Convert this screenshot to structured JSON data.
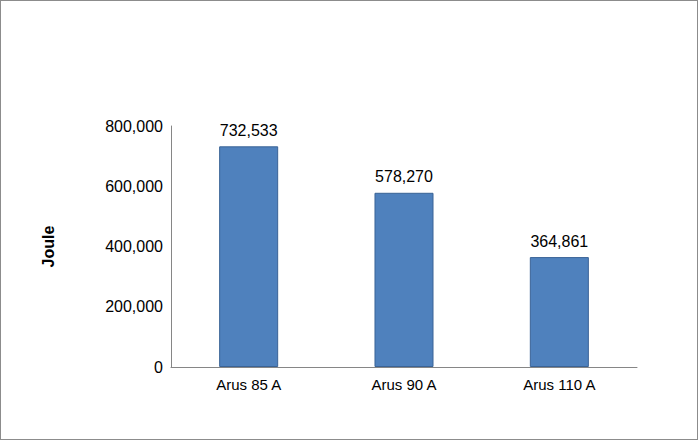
{
  "chart_data": {
    "type": "bar",
    "y_label": "Joule",
    "categories": [
      "Arus 85 A",
      "Arus 90 A",
      "Arus 110 A"
    ],
    "values": [
      732533,
      578270,
      364861
    ],
    "value_labels": [
      "732,533",
      "578,270",
      "364,861"
    ],
    "color": "#4f81bd",
    "ylim": [
      0,
      800000
    ],
    "yticks": [
      0,
      {
        "value": 200000,
        "label": "200,000"
      },
      {
        "value": 400000,
        "label": "400,000"
      },
      {
        "value": 600000,
        "label": "600,000"
      },
      {
        "value": 800000,
        "label": "800,000"
      }
    ],
    "grid": false,
    "data_labels": true
  }
}
